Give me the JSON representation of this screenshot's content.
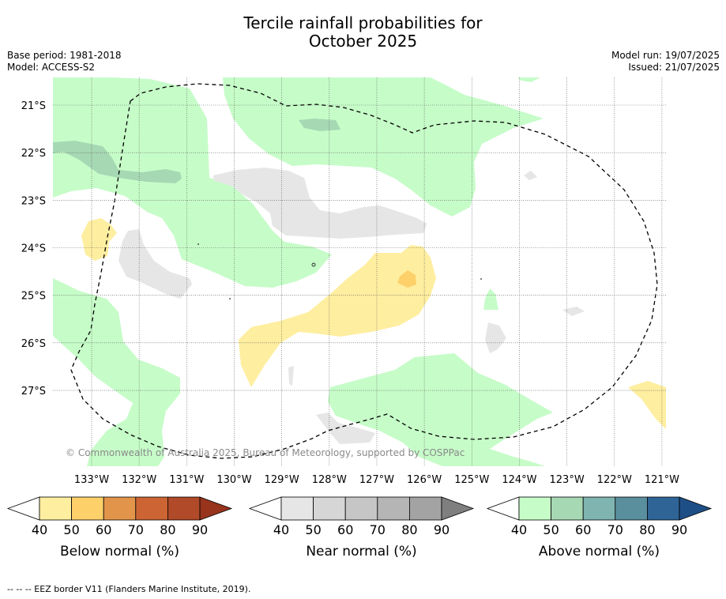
{
  "title_line1": "Tercile rainfall probabilities for",
  "title_line2": "October 2025",
  "base_period": "Base period: 1981-2018",
  "model": "Model: ACCESS-S2",
  "model_run": "Model run: 19/07/2025",
  "issued": "Issued: 21/07/2025",
  "copyright": "© Commonwealth of Australia 2025, Bureau of Meteorology, supported by COSPPac",
  "footer": "--  --  -- EEZ border V11 (Flanders Marine Institute, 2019).",
  "map": {
    "lat_ticks": [
      "21°S",
      "22°S",
      "23°S",
      "24°S",
      "25°S",
      "26°S",
      "27°S"
    ],
    "lon_ticks": [
      "133°W",
      "132°W",
      "131°W",
      "130°W",
      "129°W",
      "128°W",
      "127°W",
      "126°W",
      "125°W",
      "124°W",
      "123°W",
      "122°W",
      "121°W"
    ],
    "lat_values": [
      -21,
      -22,
      -23,
      -24,
      -25,
      -26,
      -27
    ],
    "lon_values": [
      -133,
      -132,
      -131,
      -130,
      -129,
      -128,
      -127,
      -126,
      -125,
      -124,
      -123,
      -122,
      -121
    ]
  },
  "colorbars": [
    {
      "label": "Below normal (%)",
      "ticks": [
        "40",
        "50",
        "60",
        "70",
        "80",
        "90"
      ],
      "colors": [
        "#ffffff",
        "#feeea0",
        "#fed06a",
        "#e2954a",
        "#cc6433",
        "#b04a28",
        "#98331c"
      ]
    },
    {
      "label": "Near normal (%)",
      "ticks": [
        "40",
        "50",
        "60",
        "70",
        "80",
        "90"
      ],
      "colors": [
        "#ffffff",
        "#e6e6e6",
        "#d6d6d6",
        "#c6c6c6",
        "#b5b5b5",
        "#a3a3a3",
        "#7f7f7f"
      ]
    },
    {
      "label": "Above normal (%)",
      "ticks": [
        "40",
        "50",
        "60",
        "70",
        "80",
        "90"
      ],
      "colors": [
        "#ffffff",
        "#c6fcc8",
        "#a6d8b4",
        "#7fb4b0",
        "#5a8f9e",
        "#2f6496",
        "#1e4e86"
      ]
    }
  ],
  "colors": {
    "above_40": "#c6fcc8",
    "above_50": "#a6d8b4",
    "near_40": "#e6e6e6",
    "below_40": "#feeea0",
    "below_50": "#fed06a",
    "grid": "#555555",
    "eez": "#000000"
  }
}
